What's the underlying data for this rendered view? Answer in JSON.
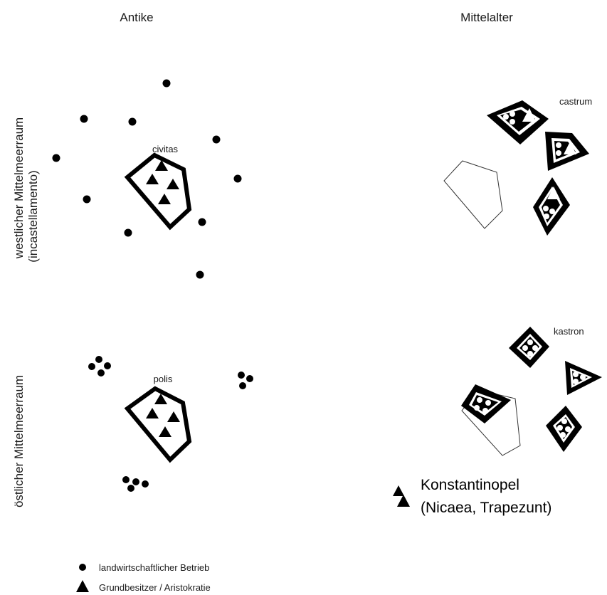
{
  "headers": {
    "antike": "Antike",
    "mittelalter": "Mittelalter"
  },
  "rows": {
    "west_line1": "westlicher Mittelmeerraum",
    "west_line2": "(incastellamento)",
    "east": "östlicher Mittelmeerraum"
  },
  "labels": {
    "civitas": "civitas",
    "polis": "polis",
    "castrum": "castrum",
    "kastron": "kastron",
    "konstantinopel_line1": "Konstantinopel",
    "konstantinopel_line2": "(Nicaea, Trapezunt)"
  },
  "legend": {
    "farm": "landwirtschaftlicher Betrieb",
    "landowner": "Grundbesitzer / Aristokratie"
  }
}
